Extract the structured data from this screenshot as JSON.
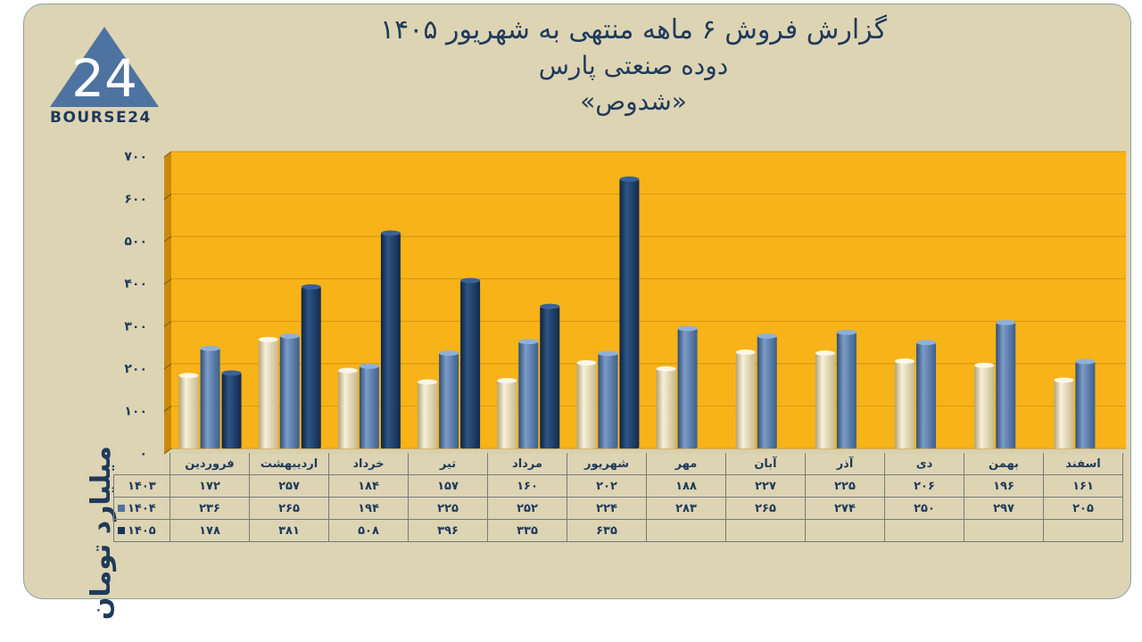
{
  "title": {
    "line1": "گزارش  فروش ۶ ماهه منتهی به شهریور ۱۴۰۵",
    "line2": "دوده صنعتی پارس",
    "line3": "«شدوص»"
  },
  "logo": {
    "text": "BOURSE24",
    "mark": "24"
  },
  "colors": {
    "background": "#ddd4b4",
    "plot_bg": "#f7b318",
    "series_1403": "#e8dcb8",
    "series_1404": "#4f73a0",
    "series_1405": "#17345c"
  },
  "chart_data": {
    "type": "bar",
    "ylabel": "میلیارد تومان",
    "ylim": [
      0,
      700
    ],
    "yticks": [
      "۰",
      "۱۰۰",
      "۲۰۰",
      "۳۰۰",
      "۴۰۰",
      "۵۰۰",
      "۶۰۰",
      "۷۰۰"
    ],
    "ytick_values": [
      0,
      100,
      200,
      300,
      400,
      500,
      600,
      700
    ],
    "categories": [
      "فروردین",
      "اردیبهشت",
      "خرداد",
      "تیر",
      "مرداد",
      "شهریور",
      "مهر",
      "آبان",
      "آذر",
      "دی",
      "بهمن",
      "اسفند"
    ],
    "series": [
      {
        "name": "۱۴۰۳",
        "values": [
          172,
          257,
          184,
          157,
          160,
          202,
          188,
          227,
          225,
          206,
          196,
          161
        ],
        "labels": [
          "۱۷۲",
          "۲۵۷",
          "۱۸۴",
          "۱۵۷",
          "۱۶۰",
          "۲۰۲",
          "۱۸۸",
          "۲۲۷",
          "۲۲۵",
          "۲۰۶",
          "۱۹۶",
          "۱۶۱"
        ]
      },
      {
        "name": "۱۴۰۴",
        "values": [
          236,
          265,
          194,
          225,
          252,
          224,
          283,
          265,
          274,
          250,
          297,
          205
        ],
        "labels": [
          "۲۳۶",
          "۲۶۵",
          "۱۹۴",
          "۲۲۵",
          "۲۵۲",
          "۲۲۴",
          "۲۸۳",
          "۲۶۵",
          "۲۷۴",
          "۲۵۰",
          "۲۹۷",
          "۲۰۵"
        ]
      },
      {
        "name": "۱۴۰۵",
        "values": [
          178,
          381,
          508,
          396,
          335,
          635,
          null,
          null,
          null,
          null,
          null,
          null
        ],
        "labels": [
          "۱۷۸",
          "۳۸۱",
          "۵۰۸",
          "۳۹۶",
          "۳۳۵",
          "۶۳۵",
          "",
          "",
          "",
          "",
          "",
          ""
        ]
      }
    ]
  }
}
